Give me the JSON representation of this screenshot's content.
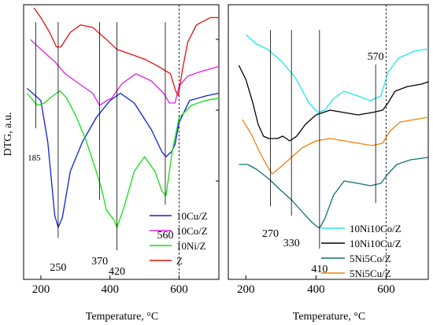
{
  "chart_data": [
    {
      "type": "line",
      "ylabel": "DTG, a.u.",
      "xlabel": "Temperature, °C",
      "xlim": [
        150,
        715
      ],
      "ylim": [
        0,
        10
      ],
      "x_ticks": [
        200,
        400,
        600
      ],
      "reference_line_x": 600,
      "grid": false,
      "legend_position": "bottom-right",
      "series": [
        {
          "name": "10Cu/Z",
          "color": "#1020d0",
          "points": [
            [
              160,
              6.7
            ],
            [
              200,
              6.2
            ],
            [
              220,
              4.5
            ],
            [
              240,
              1.5
            ],
            [
              250,
              1.0
            ],
            [
              262,
              1.4
            ],
            [
              285,
              3.3
            ],
            [
              320,
              4.5
            ],
            [
              360,
              5.5
            ],
            [
              400,
              6.2
            ],
            [
              430,
              6.5
            ],
            [
              470,
              6.1
            ],
            [
              520,
              5.0
            ],
            [
              550,
              4.1
            ],
            [
              562,
              3.9
            ],
            [
              578,
              4.1
            ],
            [
              588,
              4.4
            ],
            [
              600,
              5.3
            ],
            [
              630,
              6.2
            ],
            [
              680,
              6.4
            ],
            [
              715,
              6.5
            ]
          ]
        },
        {
          "name": "10Co/Z",
          "color": "#e020e0",
          "points": [
            [
              170,
              8.7
            ],
            [
              200,
              8.3
            ],
            [
              240,
              7.8
            ],
            [
              270,
              7.3
            ],
            [
              310,
              6.9
            ],
            [
              350,
              6.5
            ],
            [
              370,
              6.0
            ],
            [
              390,
              6.2
            ],
            [
              405,
              6.3
            ],
            [
              415,
              6.5
            ],
            [
              435,
              6.9
            ],
            [
              475,
              7.3
            ],
            [
              520,
              7.0
            ],
            [
              555,
              6.5
            ],
            [
              572,
              6.1
            ],
            [
              588,
              6.1
            ],
            [
              600,
              6.8
            ],
            [
              625,
              7.2
            ],
            [
              665,
              7.4
            ],
            [
              715,
              7.6
            ]
          ]
        },
        {
          "name": "10Ni/Z",
          "color": "#10e010",
          "points": [
            [
              160,
              6.5
            ],
            [
              190,
              6.0
            ],
            [
              210,
              6.1
            ],
            [
              235,
              6.4
            ],
            [
              255,
              6.6
            ],
            [
              275,
              6.3
            ],
            [
              300,
              5.6
            ],
            [
              330,
              4.6
            ],
            [
              360,
              3.3
            ],
            [
              375,
              2.6
            ],
            [
              390,
              1.7
            ],
            [
              412,
              1.3
            ],
            [
              420,
              1.0
            ],
            [
              440,
              1.8
            ],
            [
              470,
              3.3
            ],
            [
              500,
              3.9
            ],
            [
              530,
              3.3
            ],
            [
              550,
              2.5
            ],
            [
              562,
              2.3
            ],
            [
              580,
              4.1
            ],
            [
              600,
              5.5
            ],
            [
              635,
              6.0
            ],
            [
              675,
              6.2
            ],
            [
              715,
              6.3
            ]
          ]
        },
        {
          "name": "Z",
          "color": "#e01010",
          "points": [
            [
              180,
              10.0
            ],
            [
              200,
              9.6
            ],
            [
              225,
              9.0
            ],
            [
              245,
              8.4
            ],
            [
              258,
              8.4
            ],
            [
              285,
              9.0
            ],
            [
              315,
              9.3
            ],
            [
              350,
              9.2
            ],
            [
              390,
              8.7
            ],
            [
              420,
              8.3
            ],
            [
              460,
              8.1
            ],
            [
              500,
              7.9
            ],
            [
              540,
              7.6
            ],
            [
              575,
              7.3
            ],
            [
              590,
              6.6
            ],
            [
              598,
              6.4
            ],
            [
              610,
              7.5
            ],
            [
              625,
              8.6
            ],
            [
              650,
              9.3
            ],
            [
              690,
              9.6
            ],
            [
              715,
              9.6
            ]
          ]
        }
      ],
      "annotations": [
        {
          "text": "185",
          "x": 185
        },
        {
          "text": "250",
          "x": 250
        },
        {
          "text": "370",
          "x": 370
        },
        {
          "text": "420",
          "x": 420
        },
        {
          "text": "560",
          "x": 560
        }
      ]
    },
    {
      "type": "line",
      "xlabel": "Temperature, °C",
      "xlim": [
        150,
        720
      ],
      "ylim": [
        0,
        10
      ],
      "x_ticks": [
        200,
        400,
        600
      ],
      "reference_line_x": 600,
      "grid": false,
      "legend_position": "bottom-right",
      "series": [
        {
          "name": "10Ni10Co/Z",
          "color": "#20e8e8",
          "points": [
            [
              200,
              9.2
            ],
            [
              230,
              8.8
            ],
            [
              260,
              8.6
            ],
            [
              300,
              8.1
            ],
            [
              340,
              7.4
            ],
            [
              380,
              6.3
            ],
            [
              405,
              5.9
            ],
            [
              425,
              6.0
            ],
            [
              450,
              6.5
            ],
            [
              480,
              6.8
            ],
            [
              520,
              6.6
            ],
            [
              555,
              6.4
            ],
            [
              585,
              6.6
            ],
            [
              605,
              7.6
            ],
            [
              635,
              8.2
            ],
            [
              680,
              8.5
            ],
            [
              720,
              8.6
            ]
          ]
        },
        {
          "name": "10Ni10Cu/Z",
          "color": "#000000",
          "points": [
            [
              180,
              7.9
            ],
            [
              200,
              7.3
            ],
            [
              220,
              6.3
            ],
            [
              235,
              5.4
            ],
            [
              250,
              4.9
            ],
            [
              265,
              4.8
            ],
            [
              290,
              4.8
            ],
            [
              305,
              4.9
            ],
            [
              325,
              4.7
            ],
            [
              345,
              4.9
            ],
            [
              370,
              5.4
            ],
            [
              400,
              5.8
            ],
            [
              440,
              6.0
            ],
            [
              480,
              5.9
            ],
            [
              520,
              5.8
            ],
            [
              560,
              5.9
            ],
            [
              590,
              6.0
            ],
            [
              605,
              6.3
            ],
            [
              625,
              6.8
            ],
            [
              660,
              7.0
            ],
            [
              700,
              7.1
            ],
            [
              720,
              7.2
            ]
          ]
        },
        {
          "name": "5Ni5Co/Z",
          "color": "#107070",
          "points": [
            [
              180,
              3.7
            ],
            [
              205,
              3.7
            ],
            [
              230,
              3.5
            ],
            [
              265,
              3.1
            ],
            [
              300,
              2.6
            ],
            [
              330,
              2.2
            ],
            [
              360,
              1.7
            ],
            [
              385,
              1.3
            ],
            [
              400,
              1.1
            ],
            [
              410,
              1.0
            ],
            [
              425,
              1.4
            ],
            [
              450,
              2.4
            ],
            [
              480,
              3.0
            ],
            [
              520,
              2.9
            ],
            [
              555,
              2.8
            ],
            [
              585,
              2.9
            ],
            [
              605,
              3.3
            ],
            [
              630,
              3.7
            ],
            [
              670,
              3.9
            ],
            [
              720,
              4.0
            ]
          ]
        },
        {
          "name": "5Ni5Cu/Z",
          "color": "#f08010",
          "points": [
            [
              190,
              5.6
            ],
            [
              215,
              5.0
            ],
            [
              240,
              4.2
            ],
            [
              262,
              3.6
            ],
            [
              275,
              3.3
            ],
            [
              300,
              3.6
            ],
            [
              330,
              4.0
            ],
            [
              360,
              4.4
            ],
            [
              400,
              4.7
            ],
            [
              440,
              4.8
            ],
            [
              480,
              4.7
            ],
            [
              520,
              4.6
            ],
            [
              560,
              4.5
            ],
            [
              590,
              4.6
            ],
            [
              610,
              5.1
            ],
            [
              640,
              5.5
            ],
            [
              680,
              5.6
            ],
            [
              720,
              5.7
            ]
          ]
        }
      ],
      "annotations": [
        {
          "text": "270",
          "x": 270
        },
        {
          "text": "330",
          "x": 330
        },
        {
          "text": "410",
          "x": 410
        },
        {
          "text": "570",
          "x": 570
        }
      ]
    }
  ]
}
